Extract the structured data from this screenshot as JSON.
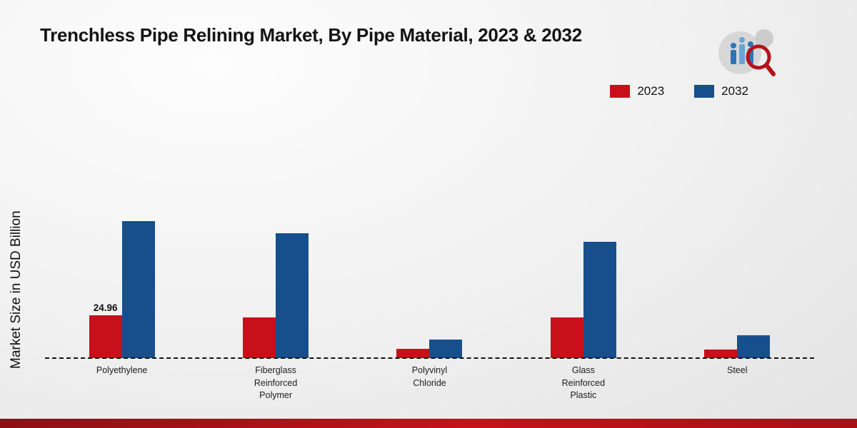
{
  "title": "Trenchless Pipe Relining Market, By Pipe Material, 2023 & 2032",
  "y_axis_label": "Market Size in USD Billion",
  "legend": {
    "items": [
      {
        "label": "2023",
        "color": "#c8101a"
      },
      {
        "label": "2032",
        "color": "#174f8c"
      }
    ]
  },
  "chart_data": {
    "type": "bar",
    "title": "Trenchless Pipe Relining Market, By Pipe Material, 2023 & 2032",
    "xlabel": "",
    "ylabel": "Market Size in USD Billion",
    "categories": [
      "Polyethylene",
      "Fiberglass Reinforced Polymer",
      "Polyvinyl Chloride",
      "Glass Reinforced Plastic",
      "Steel"
    ],
    "series": [
      {
        "name": "2023",
        "color": "#c8101a",
        "values": [
          24.96,
          23.7,
          5.4,
          23.7,
          5.0
        ]
      },
      {
        "name": "2032",
        "color": "#174f8c",
        "values": [
          80.0,
          73.0,
          11.0,
          68.0,
          13.3
        ]
      }
    ],
    "data_labels": [
      {
        "series": "2023",
        "category": "Polyethylene",
        "text": "24.96"
      }
    ],
    "ylim": [
      0,
      100
    ],
    "grid": false,
    "legend_position": "top-right",
    "baseline_style": "dashed"
  }
}
